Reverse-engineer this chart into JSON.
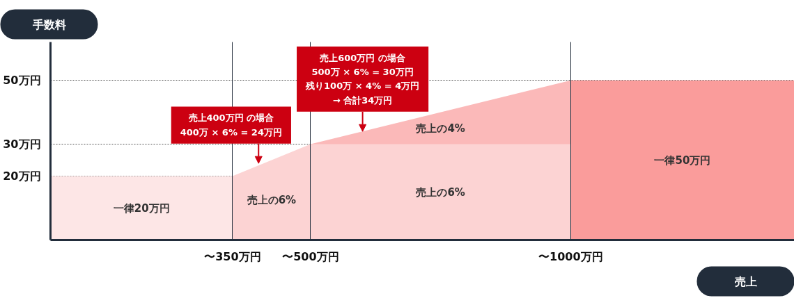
{
  "chart_data": {
    "type": "area",
    "xlabel": "売上",
    "ylabel": "手数料",
    "xlim": [
      0,
      1430
    ],
    "ylim": [
      0,
      62
    ],
    "xticks": [
      {
        "value": 350,
        "label": "〜350万円"
      },
      {
        "value": 500,
        "label": "〜500万円"
      },
      {
        "value": 1000,
        "label": "〜1000万円"
      }
    ],
    "yticks": [
      {
        "value": 20,
        "label": "20万円"
      },
      {
        "value": 30,
        "label": "30万円"
      },
      {
        "value": 50,
        "label": "50万円"
      }
    ],
    "grid": true,
    "series": [
      {
        "name": "一律20万円",
        "color": "#fde6e6",
        "x": [
          0,
          350
        ],
        "values": [
          20,
          20
        ]
      },
      {
        "name": "売上の6%",
        "color": "#fcd3d3",
        "x": [
          350,
          500
        ],
        "values": [
          20,
          30
        ]
      },
      {
        "name": "売上の4%",
        "color": "#fbb9b9",
        "x": [
          500,
          1000
        ],
        "values": [
          30,
          50
        ]
      },
      {
        "name": "売上の6%",
        "color": "#fcd3d3",
        "x": [
          500,
          1000
        ],
        "values": [
          30,
          30
        ]
      },
      {
        "name": "一律50万円",
        "color": "#fa9c9b",
        "x": [
          1000,
          1430
        ],
        "values": [
          50,
          50
        ]
      }
    ],
    "annotations": [
      {
        "text": "売上400万円 の場合\n400万 × 6% = 24万円",
        "x": 400,
        "y": 24
      },
      {
        "text": "売上600万円 の場合\n500万 × 6% = 30万円残り100万 × 4% = 4万円\n→ 合計34万円",
        "x": 600,
        "y": 34
      }
    ]
  }
}
